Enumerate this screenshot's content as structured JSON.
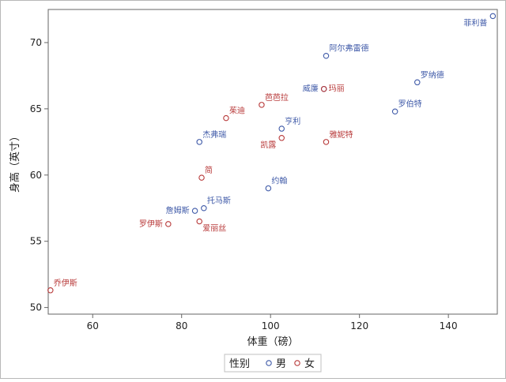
{
  "chart_data": {
    "type": "scatter",
    "xlabel": "体重（磅）",
    "ylabel": "身高（英寸）",
    "xlim": [
      50,
      151
    ],
    "ylim": [
      49.5,
      72.5
    ],
    "xticks": [
      60,
      80,
      100,
      120,
      140
    ],
    "yticks": [
      50,
      55,
      60,
      65,
      70
    ],
    "grid": false,
    "legend": {
      "title": "性别",
      "placement": "bottom-center",
      "entries": [
        {
          "group": "男",
          "label": "男",
          "color": "#3f5aa8"
        },
        {
          "group": "女",
          "label": "女",
          "color": "#b83a3a"
        }
      ]
    },
    "points": [
      {
        "label": "菲利普",
        "group": "男",
        "x": 150,
        "y": 72
      },
      {
        "label": "阿尔弗雷德",
        "group": "男",
        "x": 112.5,
        "y": 69
      },
      {
        "label": "罗纳德",
        "group": "男",
        "x": 133,
        "y": 67
      },
      {
        "label": "威廉",
        "group": "男",
        "x": 112,
        "y": 66.5
      },
      {
        "label": "玛丽",
        "group": "女",
        "x": 112,
        "y": 66.5
      },
      {
        "label": "罗伯特",
        "group": "男",
        "x": 128,
        "y": 64.8
      },
      {
        "label": "芭芭拉",
        "group": "女",
        "x": 98,
        "y": 65.3
      },
      {
        "label": "茱迪",
        "group": "女",
        "x": 90,
        "y": 64.3
      },
      {
        "label": "亨利",
        "group": "男",
        "x": 102.5,
        "y": 63.5
      },
      {
        "label": "杰弗瑞",
        "group": "男",
        "x": 84,
        "y": 62.5
      },
      {
        "label": "凯露",
        "group": "女",
        "x": 102.5,
        "y": 62.8
      },
      {
        "label": "雅妮特",
        "group": "女",
        "x": 112.5,
        "y": 62.5
      },
      {
        "label": "简",
        "group": "女",
        "x": 84.5,
        "y": 59.8
      },
      {
        "label": "约翰",
        "group": "男",
        "x": 99.5,
        "y": 59
      },
      {
        "label": "托马斯",
        "group": "男",
        "x": 85,
        "y": 57.5
      },
      {
        "label": "詹姆斯",
        "group": "男",
        "x": 83,
        "y": 57.3
      },
      {
        "label": "罗伊斯",
        "group": "女",
        "x": 77,
        "y": 56.3
      },
      {
        "label": "爱丽丝",
        "group": "女",
        "x": 84,
        "y": 56.5
      },
      {
        "label": "乔伊斯",
        "group": "女",
        "x": 50.5,
        "y": 51.3
      }
    ]
  }
}
